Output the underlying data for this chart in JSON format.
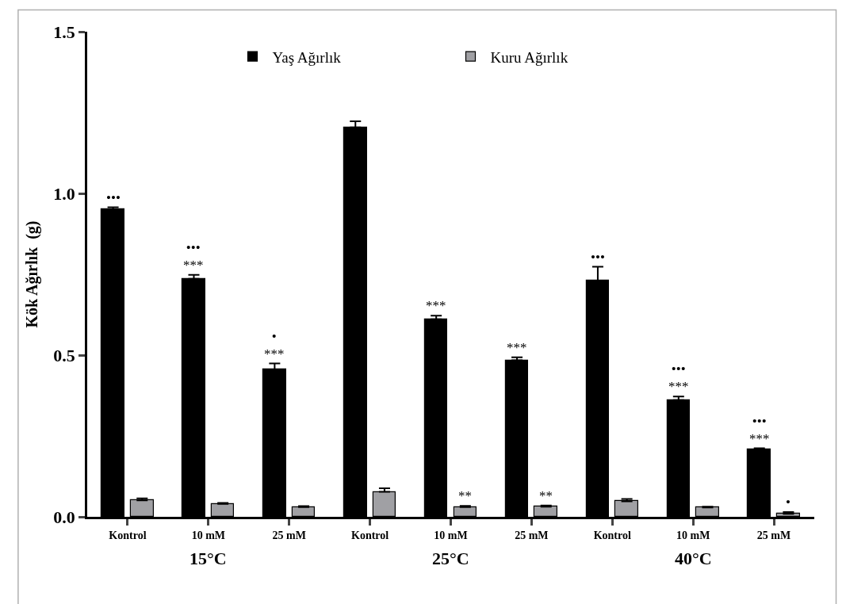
{
  "chart_data": {
    "type": "bar",
    "ylabel": "Kök Ağırlık  (g)",
    "categories": [
      "Kontrol",
      "10 mM",
      "25 mM",
      "Kontrol",
      "10 mM",
      "25 mM",
      "Kontrol",
      "10 mM",
      "25 mM"
    ],
    "series": [
      {
        "name": "Yaş Ağırlık",
        "color": "#000000",
        "values": [
          0.95,
          0.736,
          0.456,
          1.204,
          0.611,
          0.484,
          0.73,
          0.361,
          0.208
        ],
        "errors": [
          [
            0.95,
            0.957
          ],
          [
            0.736,
            0.748
          ],
          [
            0.456,
            0.474
          ],
          [
            1.204,
            1.223
          ],
          [
            0.611,
            0.622
          ],
          [
            0.484,
            0.493
          ],
          [
            0.73,
            0.773
          ],
          [
            0.361,
            0.372
          ],
          [
            0.208,
            0.212
          ]
        ],
        "value_labels": [
          "•••",
          "•••\n***",
          "•\n***",
          null,
          "***",
          "***",
          "•••",
          "•••\n***",
          "•••\n***"
        ]
      },
      {
        "name": "Kuru Ağırlık",
        "color": "#a0a0a4",
        "values": [
          0.051,
          0.04,
          0.03,
          0.077,
          0.03,
          0.031,
          0.048,
          0.029,
          0.009
        ],
        "errors": [
          [
            0.051,
            0.057
          ],
          [
            0.04,
            0.043
          ],
          [
            0.03,
            0.033
          ],
          [
            0.077,
            0.088
          ],
          [
            0.03,
            0.034
          ],
          [
            0.031,
            0.035
          ],
          [
            0.048,
            0.055
          ],
          [
            0.029,
            0.031
          ],
          [
            0.009,
            0.015
          ]
        ],
        "value_labels": [
          null,
          null,
          null,
          null,
          "**",
          "**",
          null,
          null,
          "•"
        ]
      }
    ],
    "annotations": [
      "15°C",
      "25°C",
      "40°C"
    ],
    "ylim": [
      0,
      1.5
    ],
    "yticks": [
      {
        "value": 0,
        "label": "0.0"
      },
      {
        "value": 0.5,
        "label": "0.5"
      },
      {
        "value": 1.0,
        "label": "1.0"
      },
      {
        "value": 1.5,
        "label": "1.5"
      }
    ],
    "legend": "top"
  }
}
